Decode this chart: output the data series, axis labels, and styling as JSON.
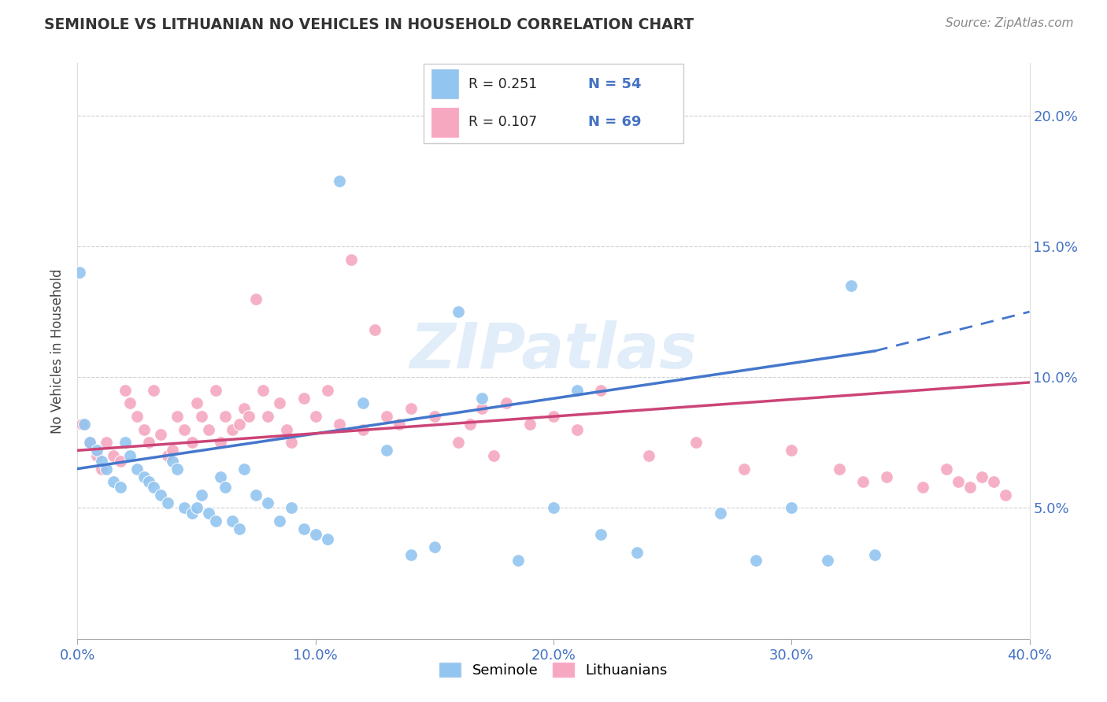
{
  "title": "SEMINOLE VS LITHUANIAN NO VEHICLES IN HOUSEHOLD CORRELATION CHART",
  "source": "Source: ZipAtlas.com",
  "ylabel": "No Vehicles in Household",
  "xlim": [
    0.0,
    0.4
  ],
  "ylim": [
    0.0,
    0.22
  ],
  "xticks": [
    0.0,
    0.1,
    0.2,
    0.3,
    0.4
  ],
  "yticks": [
    0.05,
    0.1,
    0.15,
    0.2
  ],
  "xtick_labels": [
    "0.0%",
    "10.0%",
    "20.0%",
    "30.0%",
    "40.0%"
  ],
  "ytick_labels": [
    "5.0%",
    "10.0%",
    "15.0%",
    "20.0%"
  ],
  "seminole_R": "0.251",
  "seminole_N": "54",
  "lithuanian_R": "0.107",
  "lithuanian_N": "69",
  "seminole_color": "#92C5F0",
  "lithuanian_color": "#F5A8C0",
  "trend_seminole_color": "#4477CC",
  "trend_lithuanian_color": "#CC4477",
  "watermark": "ZIPatlas",
  "legend_seminole": "Seminole",
  "legend_lithuanian": "Lithuanians",
  "seminole_x": [
    0.001,
    0.003,
    0.005,
    0.008,
    0.01,
    0.012,
    0.015,
    0.018,
    0.02,
    0.022,
    0.025,
    0.028,
    0.03,
    0.032,
    0.035,
    0.038,
    0.04,
    0.042,
    0.045,
    0.048,
    0.05,
    0.052,
    0.055,
    0.058,
    0.06,
    0.062,
    0.065,
    0.068,
    0.07,
    0.075,
    0.08,
    0.085,
    0.09,
    0.095,
    0.1,
    0.105,
    0.11,
    0.12,
    0.13,
    0.14,
    0.15,
    0.16,
    0.17,
    0.185,
    0.2,
    0.21,
    0.22,
    0.235,
    0.27,
    0.285,
    0.3,
    0.315,
    0.325,
    0.335
  ],
  "seminole_y": [
    0.14,
    0.082,
    0.075,
    0.072,
    0.068,
    0.065,
    0.06,
    0.058,
    0.075,
    0.07,
    0.065,
    0.062,
    0.06,
    0.058,
    0.055,
    0.052,
    0.068,
    0.065,
    0.05,
    0.048,
    0.05,
    0.055,
    0.048,
    0.045,
    0.062,
    0.058,
    0.045,
    0.042,
    0.065,
    0.055,
    0.052,
    0.045,
    0.05,
    0.042,
    0.04,
    0.038,
    0.175,
    0.09,
    0.072,
    0.032,
    0.035,
    0.125,
    0.092,
    0.03,
    0.05,
    0.095,
    0.04,
    0.033,
    0.048,
    0.03,
    0.05,
    0.03,
    0.135,
    0.032
  ],
  "lithuanian_x": [
    0.002,
    0.005,
    0.008,
    0.01,
    0.012,
    0.015,
    0.018,
    0.02,
    0.022,
    0.025,
    0.028,
    0.03,
    0.032,
    0.035,
    0.038,
    0.04,
    0.042,
    0.045,
    0.048,
    0.05,
    0.052,
    0.055,
    0.058,
    0.06,
    0.062,
    0.065,
    0.068,
    0.07,
    0.072,
    0.075,
    0.078,
    0.08,
    0.085,
    0.088,
    0.09,
    0.095,
    0.1,
    0.105,
    0.11,
    0.115,
    0.12,
    0.125,
    0.13,
    0.135,
    0.14,
    0.15,
    0.16,
    0.165,
    0.17,
    0.175,
    0.18,
    0.19,
    0.2,
    0.21,
    0.22,
    0.24,
    0.26,
    0.28,
    0.3,
    0.32,
    0.33,
    0.34,
    0.355,
    0.365,
    0.37,
    0.375,
    0.38,
    0.385,
    0.39
  ],
  "lithuanian_y": [
    0.082,
    0.075,
    0.07,
    0.065,
    0.075,
    0.07,
    0.068,
    0.095,
    0.09,
    0.085,
    0.08,
    0.075,
    0.095,
    0.078,
    0.07,
    0.072,
    0.085,
    0.08,
    0.075,
    0.09,
    0.085,
    0.08,
    0.095,
    0.075,
    0.085,
    0.08,
    0.082,
    0.088,
    0.085,
    0.13,
    0.095,
    0.085,
    0.09,
    0.08,
    0.075,
    0.092,
    0.085,
    0.095,
    0.082,
    0.145,
    0.08,
    0.118,
    0.085,
    0.082,
    0.088,
    0.085,
    0.075,
    0.082,
    0.088,
    0.07,
    0.09,
    0.082,
    0.085,
    0.08,
    0.095,
    0.07,
    0.075,
    0.065,
    0.072,
    0.065,
    0.06,
    0.062,
    0.058,
    0.065,
    0.06,
    0.058,
    0.062,
    0.06,
    0.055
  ],
  "trend_seminole_x_start": 0.0,
  "trend_seminole_x_solid_end": 0.335,
  "trend_seminole_x_end": 0.4,
  "trend_lithuanian_x_start": 0.0,
  "trend_lithuanian_x_end": 0.4,
  "trend_seminole_y_start": 0.065,
  "trend_seminole_y_solid_end": 0.11,
  "trend_seminole_y_end": 0.125,
  "trend_lithuanian_y_start": 0.072,
  "trend_lithuanian_y_end": 0.098
}
